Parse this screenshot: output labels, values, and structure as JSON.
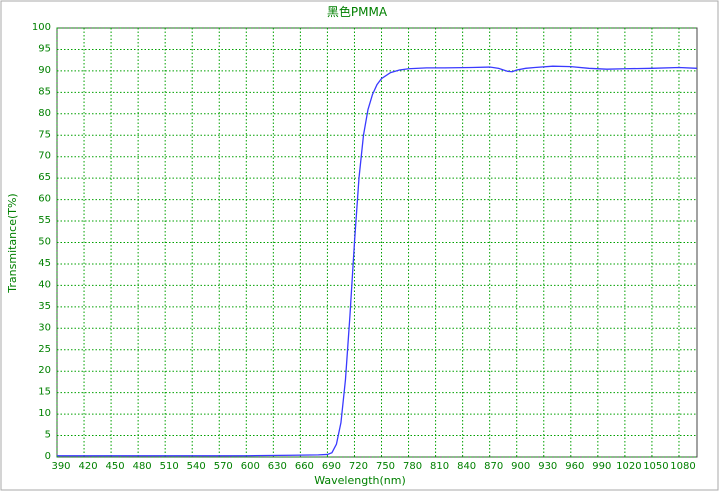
{
  "chart_data": {
    "type": "line",
    "title": "黑色PMMA",
    "x_label": "Wavelength(nm)",
    "y_label": "Transmitance(T%)",
    "x": [
      390,
      450,
      500,
      550,
      600,
      650,
      680,
      690,
      695,
      700,
      705,
      710,
      715,
      720,
      725,
      730,
      735,
      740,
      745,
      750,
      760,
      770,
      780,
      800,
      820,
      850,
      870,
      880,
      890,
      895,
      900,
      910,
      920,
      940,
      960,
      980,
      1000,
      1020,
      1050,
      1080,
      1100
    ],
    "series": [
      {
        "name": "PMMA",
        "color": "#3a3aff",
        "values": [
          0.3,
          0.3,
          0.3,
          0.3,
          0.3,
          0.4,
          0.5,
          0.6,
          1,
          3,
          8,
          18,
          33,
          50,
          65,
          75,
          81,
          84.5,
          86.8,
          88.2,
          89.6,
          90.2,
          90.5,
          90.7,
          90.7,
          90.8,
          90.9,
          90.6,
          89.9,
          89.8,
          90.2,
          90.6,
          90.8,
          91.1,
          91,
          90.6,
          90.4,
          90.5,
          90.6,
          90.8,
          90.6
        ]
      }
    ],
    "xlim": [
      390,
      1100
    ],
    "ylim": [
      0,
      100
    ],
    "xticks": [
      390,
      420,
      450,
      480,
      510,
      540,
      570,
      600,
      630,
      660,
      690,
      720,
      750,
      780,
      810,
      840,
      870,
      900,
      930,
      960,
      990,
      1020,
      1050,
      1080
    ],
    "yticks": [
      0,
      5,
      10,
      15,
      20,
      25,
      30,
      35,
      40,
      45,
      50,
      55,
      60,
      65,
      70,
      75,
      80,
      85,
      90,
      95,
      100
    ],
    "grid": true
  }
}
